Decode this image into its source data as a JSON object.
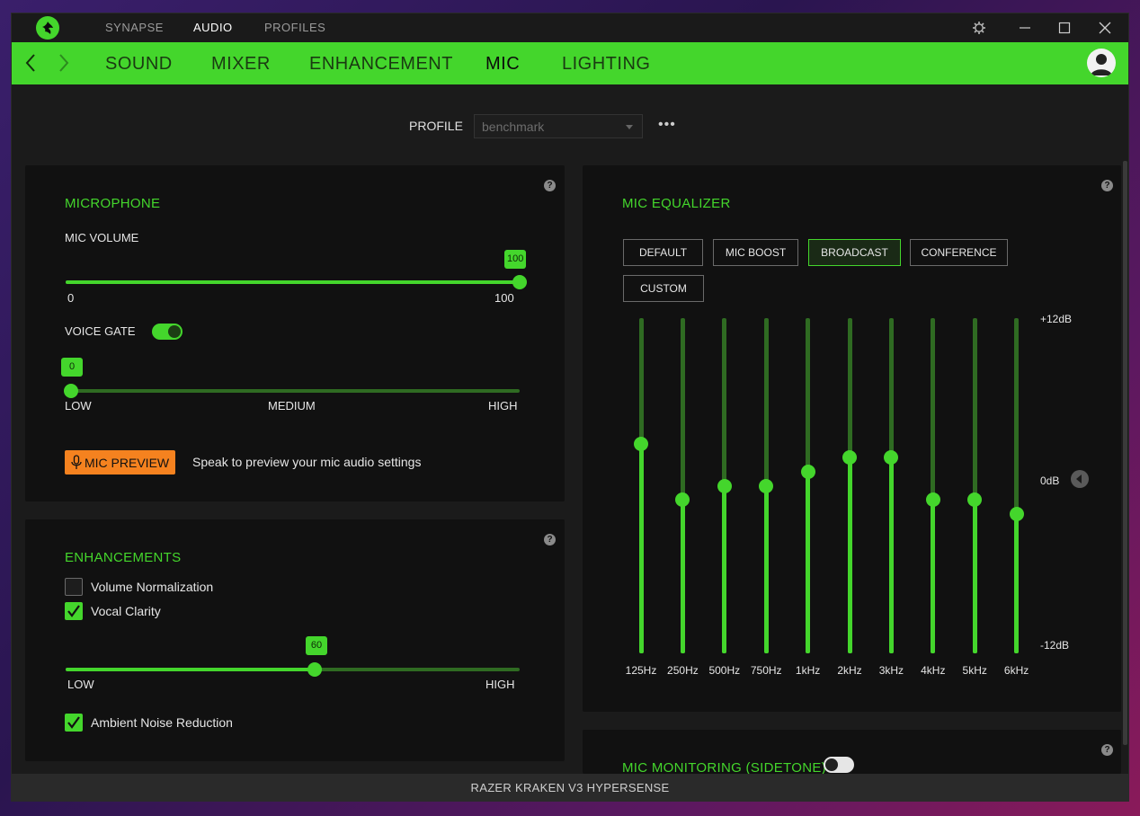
{
  "titlebar": {
    "tabs": [
      {
        "label": "SYNAPSE",
        "active": false
      },
      {
        "label": "AUDIO",
        "active": true
      },
      {
        "label": "PROFILES",
        "active": false
      }
    ]
  },
  "navbar": {
    "tabs": [
      {
        "label": "SOUND",
        "active": false
      },
      {
        "label": "MIXER",
        "active": false
      },
      {
        "label": "ENHANCEMENT",
        "active": false
      },
      {
        "label": "MIC",
        "active": true
      },
      {
        "label": "LIGHTING",
        "active": false
      }
    ]
  },
  "profile": {
    "label": "PROFILE",
    "selected": "benchmark",
    "more_label": "•••"
  },
  "microphone": {
    "title": "MICROPHONE",
    "help": "?",
    "mic_volume": {
      "label": "MIC VOLUME",
      "value": 100,
      "value_label": "100",
      "min_label": "0",
      "max_label": "100"
    },
    "voice_gate": {
      "label": "VOICE GATE",
      "enabled": true,
      "value": 0,
      "value_label": "0",
      "low_label": "LOW",
      "medium_label": "MEDIUM",
      "high_label": "HIGH"
    },
    "preview": {
      "button_label": "MIC PREVIEW",
      "hint": "Speak to preview your mic audio settings"
    }
  },
  "enhancements": {
    "title": "ENHANCEMENTS",
    "help": "?",
    "volume_normalization": {
      "label": "Volume Normalization",
      "checked": false
    },
    "vocal_clarity": {
      "label": "Vocal Clarity",
      "checked": true,
      "value": 60,
      "value_label": "60",
      "low_label": "LOW",
      "high_label": "HIGH"
    },
    "ambient_noise_reduction": {
      "label": "Ambient Noise Reduction",
      "checked": true
    }
  },
  "equalizer": {
    "title": "MIC EQUALIZER",
    "help": "?",
    "presets": [
      {
        "label": "DEFAULT",
        "active": false
      },
      {
        "label": "MIC BOOST",
        "active": false
      },
      {
        "label": "BROADCAST",
        "active": true
      },
      {
        "label": "CONFERENCE",
        "active": false
      },
      {
        "label": "CUSTOM",
        "active": false
      }
    ],
    "db_labels": {
      "top": "+12dB",
      "mid": "0dB",
      "bottom": "-12dB"
    },
    "bands": [
      {
        "freq": "125Hz",
        "gain_db": 3
      },
      {
        "freq": "250Hz",
        "gain_db": -1
      },
      {
        "freq": "500Hz",
        "gain_db": 0
      },
      {
        "freq": "750Hz",
        "gain_db": 0
      },
      {
        "freq": "1kHz",
        "gain_db": 1
      },
      {
        "freq": "2kHz",
        "gain_db": 2
      },
      {
        "freq": "3kHz",
        "gain_db": 2
      },
      {
        "freq": "4kHz",
        "gain_db": -1
      },
      {
        "freq": "5kHz",
        "gain_db": -1
      },
      {
        "freq": "6kHz",
        "gain_db": -2
      }
    ]
  },
  "mic_monitoring": {
    "title": "MIC MONITORING (SIDETONE)",
    "enabled": false,
    "help": "?"
  },
  "footer": {
    "device": "RAZER KRAKEN V3 HYPERSENSE"
  },
  "colors": {
    "accent": "#44d62c",
    "preview_button": "#f5821f",
    "panel": "#111111",
    "background": "#1b1b1b"
  }
}
